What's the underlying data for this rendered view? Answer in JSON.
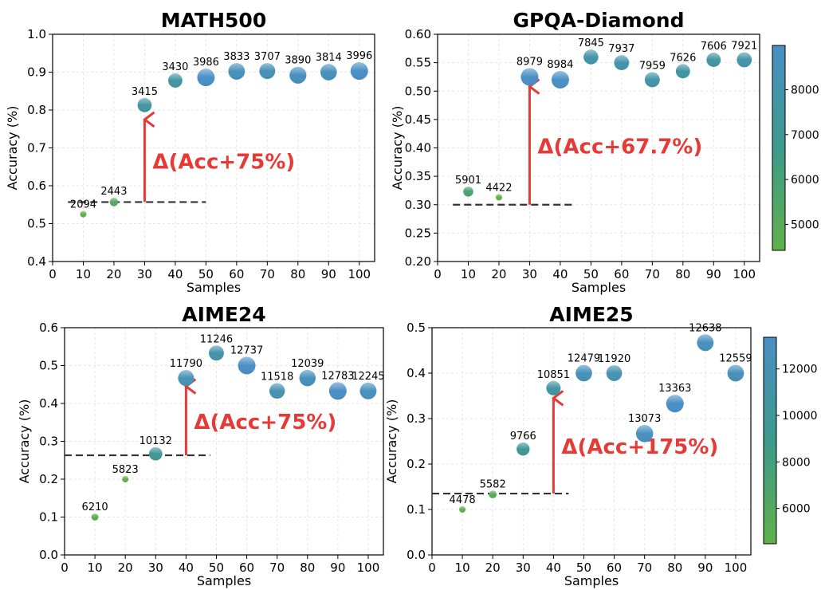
{
  "colors": {
    "annotation": "#e53a36",
    "cmap_low": "#5fb14a",
    "cmap_mid": "#3d9a8b",
    "cmap_high": "#4a8fc6",
    "baseline": "#333333"
  },
  "chart_data": [
    {
      "type": "scatter",
      "title": "MATH500",
      "xlabel": "Samples",
      "ylabel": "Accuracy (%)",
      "xlim": [
        0,
        105
      ],
      "ylim": [
        0.4,
        1.0
      ],
      "xticks": [
        "0",
        "10",
        "20",
        "30",
        "40",
        "50",
        "60",
        "70",
        "80",
        "90",
        "100"
      ],
      "yticks": [
        "0.4",
        "0.5",
        "0.6",
        "0.7",
        "0.8",
        "0.9",
        "1.0"
      ],
      "x": [
        10,
        20,
        30,
        40,
        50,
        60,
        70,
        80,
        90,
        100
      ],
      "y": [
        0.525,
        0.557,
        0.813,
        0.878,
        0.886,
        0.902,
        0.903,
        0.892,
        0.9,
        0.903
      ],
      "labels": [
        "2094",
        "2443",
        "3415",
        "3430",
        "3986",
        "3833",
        "3707",
        "3890",
        "3814",
        "3996"
      ],
      "color_values": [
        2094,
        2443,
        3415,
        3430,
        3986,
        3833,
        3707,
        3890,
        3814,
        3996
      ],
      "baseline": {
        "y": 0.557,
        "x_from": 5,
        "x_to": 50
      },
      "arrow": {
        "x": 30,
        "y_from": 0.557,
        "y_to": 0.775
      },
      "annotation": "Δ(Acc+75%)",
      "colorbar": null
    },
    {
      "type": "scatter",
      "title": "GPQA-Diamond",
      "xlabel": "Samples",
      "ylabel": "Accuracy (%)",
      "xlim": [
        0,
        105
      ],
      "ylim": [
        0.2,
        0.6
      ],
      "xticks": [
        "0",
        "10",
        "20",
        "30",
        "40",
        "50",
        "60",
        "70",
        "80",
        "90",
        "100"
      ],
      "yticks": [
        "0.20",
        "0.25",
        "0.30",
        "0.35",
        "0.40",
        "0.45",
        "0.50",
        "0.55",
        "0.60"
      ],
      "x": [
        10,
        20,
        30,
        40,
        50,
        60,
        70,
        80,
        90,
        100
      ],
      "y": [
        0.323,
        0.313,
        0.525,
        0.52,
        0.56,
        0.55,
        0.52,
        0.535,
        0.555,
        0.555
      ],
      "labels": [
        "5901",
        "4422",
        "8979",
        "8984",
        "7845",
        "7937",
        "7959",
        "7626",
        "7606",
        "7921"
      ],
      "color_values": [
        5901,
        4422,
        8979,
        8984,
        7845,
        7937,
        7959,
        7626,
        7606,
        7921
      ],
      "baseline": {
        "y": 0.3,
        "x_from": 5,
        "x_to": 45
      },
      "arrow": {
        "x": 30,
        "y_from": 0.3,
        "y_to": 0.508
      },
      "annotation": "Δ(Acc+67.7%)",
      "colorbar": {
        "min": 4422,
        "max": 8984,
        "ticks": [
          "5000",
          "6000",
          "7000",
          "8000"
        ]
      }
    },
    {
      "type": "scatter",
      "title": "AIME24",
      "xlabel": "Samples",
      "ylabel": "Accuracy (%)",
      "xlim": [
        0,
        105
      ],
      "ylim": [
        0.0,
        0.6
      ],
      "xticks": [
        "0",
        "10",
        "20",
        "30",
        "40",
        "50",
        "60",
        "70",
        "80",
        "90",
        "100"
      ],
      "yticks": [
        "0.0",
        "0.1",
        "0.2",
        "0.3",
        "0.4",
        "0.5",
        "0.6"
      ],
      "x": [
        10,
        20,
        30,
        40,
        50,
        60,
        70,
        80,
        90,
        100
      ],
      "y": [
        0.1,
        0.2,
        0.267,
        0.467,
        0.533,
        0.5,
        0.433,
        0.467,
        0.433,
        0.433
      ],
      "labels": [
        "6210",
        "5823",
        "10132",
        "11790",
        "11246",
        "12737",
        "11518",
        "12039",
        "12783",
        "12245"
      ],
      "color_values": [
        6210,
        5823,
        10132,
        11790,
        11246,
        12737,
        11518,
        12039,
        12783,
        12245
      ],
      "baseline": {
        "y": 0.263,
        "x_from": 0,
        "x_to": 48
      },
      "arrow": {
        "x": 40,
        "y_from": 0.263,
        "y_to": 0.445
      },
      "annotation": "Δ(Acc+75%)",
      "colorbar": null
    },
    {
      "type": "scatter",
      "title": "AIME25",
      "xlabel": "Samples",
      "ylabel": "Accuracy (%)",
      "xlim": [
        0,
        105
      ],
      "ylim": [
        0.0,
        0.5
      ],
      "xticks": [
        "0",
        "10",
        "20",
        "30",
        "40",
        "50",
        "60",
        "70",
        "80",
        "90",
        "100"
      ],
      "yticks": [
        "0.0",
        "0.1",
        "0.2",
        "0.3",
        "0.4",
        "0.5"
      ],
      "x": [
        10,
        20,
        30,
        40,
        50,
        60,
        70,
        80,
        90,
        100
      ],
      "y": [
        0.1,
        0.133,
        0.233,
        0.367,
        0.4,
        0.4,
        0.267,
        0.333,
        0.467,
        0.4
      ],
      "labels": [
        "4478",
        "5582",
        "9766",
        "10851",
        "12479",
        "11920",
        "13073",
        "13363",
        "12638",
        "12559"
      ],
      "color_values": [
        4478,
        5582,
        9766,
        10851,
        12479,
        11920,
        13073,
        13363,
        12638,
        12559
      ],
      "baseline": {
        "y": 0.135,
        "x_from": 0,
        "x_to": 45
      },
      "arrow": {
        "x": 40,
        "y_from": 0.135,
        "y_to": 0.345
      },
      "annotation": "Δ(Acc+175%)",
      "colorbar": {
        "min": 4478,
        "max": 13363,
        "ticks": [
          "6000",
          "8000",
          "10000",
          "12000"
        ]
      }
    }
  ]
}
